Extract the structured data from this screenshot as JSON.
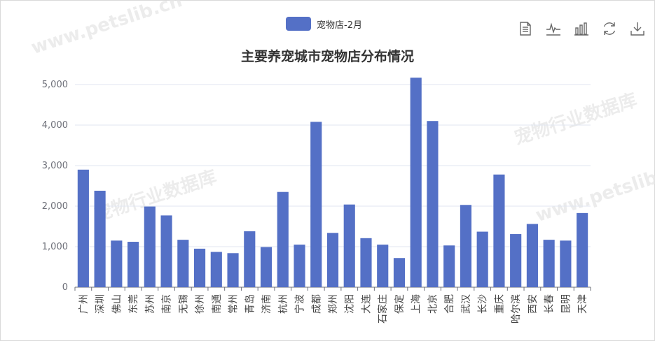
{
  "legend": {
    "label": "宠物店-2月",
    "color": "#5470c6"
  },
  "title": "主要养宠城市宠物店分布情况",
  "toolbox": [
    {
      "name": "data-view-icon"
    },
    {
      "name": "line-chart-icon"
    },
    {
      "name": "bar-chart-icon"
    },
    {
      "name": "restore-icon"
    },
    {
      "name": "download-icon"
    }
  ],
  "chart_data": {
    "type": "bar",
    "title": "主要养宠城市宠物店分布情况",
    "categories": [
      "广州",
      "深圳",
      "佛山",
      "东莞",
      "苏州",
      "南京",
      "无锡",
      "徐州",
      "南通",
      "常州",
      "青岛",
      "济南",
      "杭州",
      "宁波",
      "成都",
      "郑州",
      "沈阳",
      "大连",
      "石家庄",
      "保定",
      "上海",
      "北京",
      "合肥",
      "武汉",
      "长沙",
      "重庆",
      "哈尔滨",
      "西安",
      "长春",
      "昆明",
      "天津"
    ],
    "series": [
      {
        "name": "宠物店-2月",
        "values": [
          2900,
          2380,
          1150,
          1120,
          1990,
          1770,
          1170,
          950,
          870,
          840,
          1380,
          990,
          2350,
          1050,
          4080,
          1340,
          2040,
          1210,
          1050,
          720,
          5170,
          4100,
          1030,
          2030,
          1370,
          2780,
          1310,
          1560,
          1170,
          1150,
          1830
        ]
      }
    ],
    "ylim": [
      0,
      5000
    ],
    "yticks": [
      "0",
      "1,000",
      "2,000",
      "3,000",
      "4,000",
      "5,000"
    ],
    "grid": "horizontal",
    "legend_position": "top-center",
    "color": "#5470c6"
  },
  "watermark": {
    "brand": "宠物行业数据库",
    "url": "www.petslib.cn"
  }
}
